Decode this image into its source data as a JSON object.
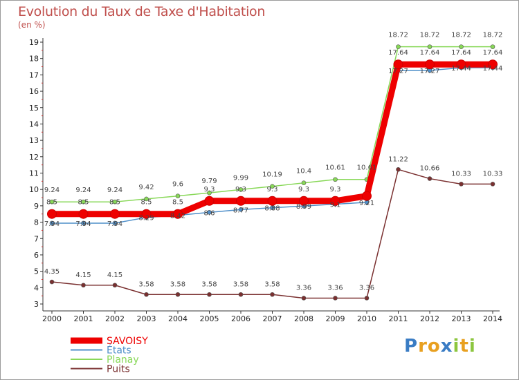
{
  "chart_data": {
    "type": "line",
    "title": "Evolution du Taux de Taxe d'Habitation",
    "unit": "(en %)",
    "x": [
      "2000",
      "2001",
      "2002",
      "2003",
      "2004",
      "2005",
      "2006",
      "2007",
      "2008",
      "2009",
      "2010",
      "2011",
      "2012",
      "2013",
      "2014"
    ],
    "ylim": [
      3,
      19
    ],
    "yticks": [
      3,
      4,
      5,
      6,
      7,
      8,
      9,
      10,
      11,
      12,
      13,
      14,
      15,
      16,
      17,
      18,
      19
    ],
    "grid": false,
    "legend_position": "bottom-left",
    "series": [
      {
        "name": "SAVOISY",
        "color": "#ee0000",
        "values": [
          8.5,
          8.5,
          8.5,
          8.5,
          8.5,
          9.3,
          9.3,
          9.3,
          9.3,
          9.3,
          9.6,
          17.64,
          17.64,
          17.64,
          17.64
        ],
        "labels": [
          "8.5",
          "8.5",
          "8.5",
          "8.5",
          "8.5",
          "9.3",
          "9.3",
          "9.3",
          "9.3",
          "9.3",
          "",
          "17.64",
          "17.64",
          "17.64",
          "17.64"
        ]
      },
      {
        "name": "États",
        "color": "#4f8fc9",
        "values": [
          7.94,
          7.94,
          7.94,
          8.29,
          8.42,
          8.6,
          8.77,
          8.88,
          8.99,
          9.1,
          9.21,
          17.27,
          17.27,
          17.44,
          17.44
        ],
        "labels": [
          "7.94",
          "7.94",
          "7.94",
          "8.29",
          "8.42",
          "8.6",
          "8.77",
          "8.88",
          "8.99",
          "9.1",
          "9.21",
          "17.27",
          "17.27",
          "17.44",
          "17.44"
        ]
      },
      {
        "name": "Planay",
        "color": "#88d858",
        "values": [
          9.24,
          9.24,
          9.24,
          9.42,
          9.6,
          9.79,
          9.99,
          10.19,
          10.4,
          10.61,
          10.61,
          18.72,
          18.72,
          18.72,
          18.72
        ],
        "labels": [
          "9.24",
          "9.24",
          "9.24",
          "9.42",
          "9.6",
          "9.79",
          "9.99",
          "10.19",
          "10.4",
          "10.61",
          "10.61",
          "18.72",
          "18.72",
          "18.72",
          "18.72"
        ]
      },
      {
        "name": "Puits",
        "color": "#7a3030",
        "values": [
          4.35,
          4.15,
          4.15,
          3.58,
          3.58,
          3.58,
          3.58,
          3.58,
          3.36,
          3.36,
          3.36,
          11.22,
          10.66,
          10.33,
          10.33
        ],
        "labels": [
          "4.35",
          "4.15",
          "4.15",
          "3.58",
          "3.58",
          "3.58",
          "3.58",
          "3.58",
          "3.36",
          "3.36",
          "3.36",
          "11.22",
          "10.66",
          "10.33",
          "10.33"
        ]
      }
    ]
  },
  "logo": {
    "letters": [
      "P",
      "r",
      "o",
      "x",
      "i",
      "t",
      "i"
    ],
    "colors": [
      "#3a7cc4",
      "#e8a020",
      "#e8a020",
      "#3a7cc4",
      "#8cc63f",
      "#e8a020",
      "#8cc63f"
    ]
  }
}
